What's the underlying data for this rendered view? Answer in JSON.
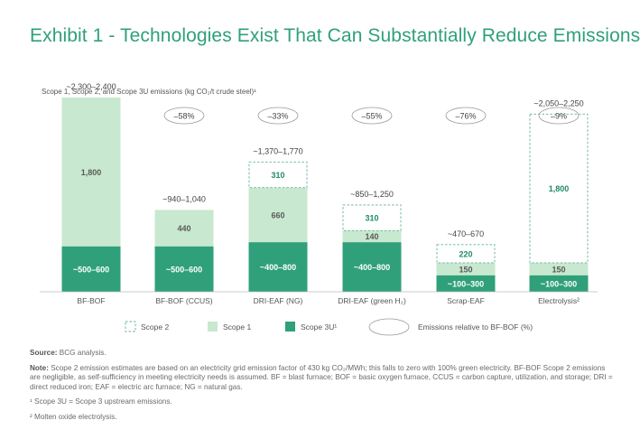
{
  "title": "Exhibit 1 - Technologies Exist That Can Substantially Reduce Emissions",
  "subtitle": "Scope 1, Scope 2, and Scope 3U emissions (kg CO₂/t crude steel)¹",
  "colors": {
    "scope1": "#c8e8cf",
    "scope3u": "#2fa07a",
    "scope2_border": "#5fb39a",
    "title": "#2fa07a"
  },
  "chart_data": {
    "type": "bar",
    "stacked": true,
    "ylim": [
      0,
      2500
    ],
    "categories": [
      "BF-BOF",
      "BF-BOF (CCUS)",
      "DRI-EAF (NG)",
      "DRI-EAF (green H₂)",
      "Scrap-EAF",
      "Electrolysis²"
    ],
    "totals": [
      "~2,300–2,400",
      "~940–1,040",
      "~1,370–1,770",
      "~850–1,250",
      "~470–670",
      "~2,050–2,250"
    ],
    "reduction": [
      "",
      "–58%",
      "–33%",
      "–55%",
      "–76%",
      "–9%"
    ],
    "series": [
      {
        "name": "Scope 3U¹",
        "values": [
          550,
          550,
          600,
          600,
          200,
          200
        ],
        "labels": [
          "~500–600",
          "~500–600",
          "~400–800",
          "~400–800",
          "~100–300",
          "~100–300"
        ]
      },
      {
        "name": "Scope 1",
        "values": [
          1800,
          440,
          660,
          140,
          150,
          150
        ],
        "labels": [
          "1,800",
          "440",
          "660",
          "140",
          "150",
          "150"
        ]
      },
      {
        "name": "Scope 2",
        "values": [
          0,
          0,
          310,
          310,
          220,
          1800
        ],
        "labels": [
          "",
          "",
          "310",
          "310",
          "220",
          "1,800"
        ]
      }
    ],
    "legend": {
      "scope2": "Scope 2",
      "scope1": "Scope 1",
      "scope3u": "Scope 3U¹",
      "relative": "Emissions relative to BF-BOF (%)"
    }
  },
  "notes": {
    "source_label": "Source:",
    "source_text": "BCG analysis.",
    "note_label": "Note:",
    "note_text": "Scope 2 emission estimates are based on an electricity grid emission factor of 430 kg CO₂/MWh; this falls to zero with 100% green electricity. BF-BOF Scope 2 emissions are negligible, as self-sufficiency in meeting electricity needs is assumed. BF = blast furnace; BOF = basic oxygen furnace, CCUS = carbon capture, utilization, and storage; DRI = direct reduced iron; EAF = electric arc furnace; NG = natural gas.",
    "footnote1": "¹ Scope 3U = Scope 3 upstream emissions.",
    "footnote2": "² Molten oxide electrolysis."
  }
}
